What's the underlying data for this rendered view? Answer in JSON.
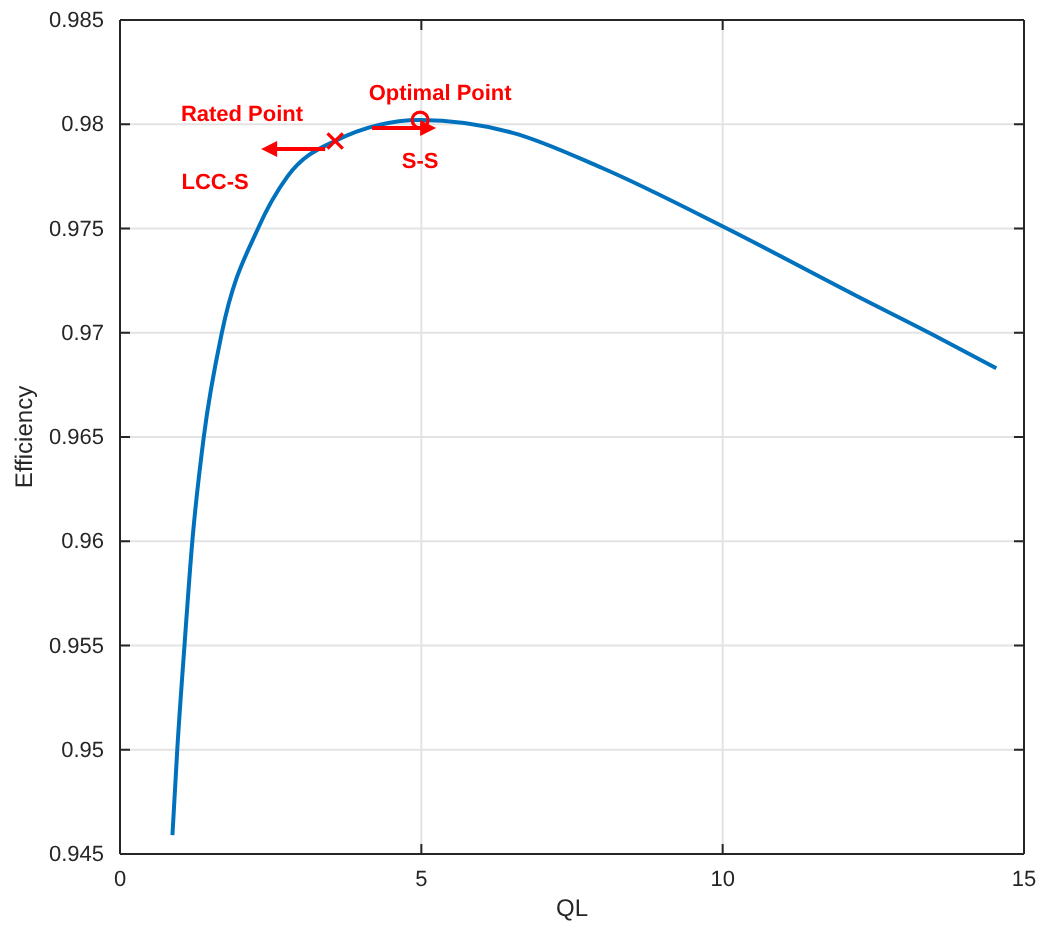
{
  "chart_data": {
    "type": "line",
    "xlabel": "QL",
    "ylabel": "Efficiency",
    "xlim": [
      0,
      15
    ],
    "xticks": [
      0,
      5,
      10,
      15
    ],
    "ylim": [
      0.945,
      0.985
    ],
    "yticks": [
      0.945,
      0.95,
      0.955,
      0.96,
      0.965,
      0.97,
      0.975,
      0.98,
      0.985
    ],
    "grid": true,
    "series": [
      {
        "color": "#0072bd",
        "marker": "none",
        "x": [
          0.87,
          0.95,
          1.07,
          1.2,
          1.39,
          1.69,
          2.29,
          2.78,
          3.57,
          4.98,
          6.5,
          8.0,
          10.07,
          12.2,
          13.56,
          14.54
        ],
        "values": [
          0.9459,
          0.95,
          0.955,
          0.96,
          0.965,
          0.97,
          0.975,
          0.9775,
          0.9792,
          0.9802,
          0.9796,
          0.9779,
          0.975,
          0.9718,
          0.9698,
          0.9683
        ]
      },
      {
        "type": "scatter",
        "color": "#ff0000",
        "marker": "cross",
        "x": [
          3.57
        ],
        "values": [
          0.9792
        ]
      },
      {
        "type": "scatter",
        "color": "#ff0000",
        "marker": "circle",
        "x": [
          4.98
        ],
        "values": [
          0.9802
        ]
      }
    ],
    "annotations": [
      {
        "text": "Rated Point",
        "x": 3.57,
        "y": 0.9792
      },
      {
        "text": "Optimal Point",
        "x": 4.98,
        "y": 0.9802
      },
      "LCC-S",
      "S-S"
    ]
  }
}
